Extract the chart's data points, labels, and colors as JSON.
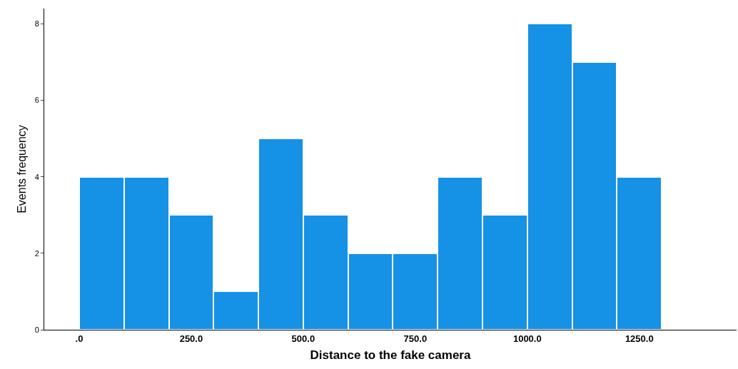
{
  "chart_data": {
    "type": "histogram",
    "xlabel": "Distance to the fake camera",
    "ylabel": "Events frequency",
    "bins": [
      0,
      100,
      200,
      300,
      400,
      500,
      600,
      700,
      800,
      900,
      1000,
      1100,
      1200,
      1300
    ],
    "values": [
      4,
      4,
      3,
      1,
      5,
      3,
      2,
      2,
      4,
      3,
      8,
      7,
      4
    ],
    "color": "#1591e6",
    "xlim": [
      -78,
      1467
    ],
    "xticks": [
      {
        "value": 0,
        "label": ".0"
      },
      {
        "value": 250,
        "label": "250.0"
      },
      {
        "value": 500,
        "label": "500.0"
      },
      {
        "value": 750,
        "label": "750.0"
      },
      {
        "value": 1000,
        "label": "1000.0"
      },
      {
        "value": 1250,
        "label": "1250.0"
      }
    ],
    "ylim": [
      0,
      8.4
    ],
    "yticks": [
      0,
      2,
      4,
      6,
      8
    ],
    "grid": false,
    "legend": false
  }
}
